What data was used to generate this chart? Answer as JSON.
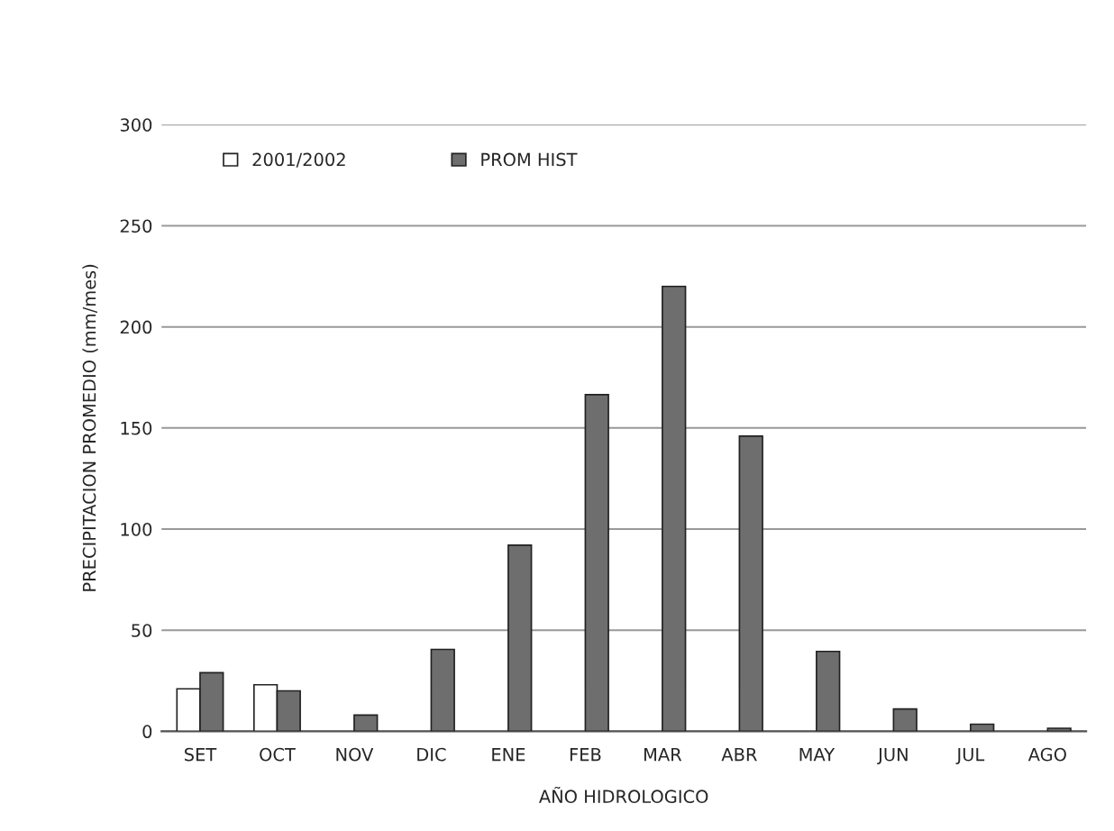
{
  "chart_data": {
    "type": "bar",
    "xlabel": "AÑO HIDROLOGICO",
    "ylabel": "PRECIPITACION PROMEDIO (mm/mes)",
    "categories": [
      "SET",
      "OCT",
      "NOV",
      "DIC",
      "ENE",
      "FEB",
      "MAR",
      "ABR",
      "MAY",
      "JUN",
      "JUL",
      "AGO"
    ],
    "series": [
      {
        "name": "2001/2002",
        "color": "#ffffff",
        "values": [
          21,
          23,
          null,
          null,
          null,
          null,
          null,
          null,
          null,
          null,
          null,
          null
        ]
      },
      {
        "name": "PROM HIST",
        "color": "#6e6e6e",
        "values": [
          29,
          20,
          8,
          40.5,
          92,
          166.5,
          220,
          146,
          39.5,
          11,
          3.5,
          1.5
        ]
      }
    ],
    "ylim": [
      0,
      300
    ],
    "yticks": [
      0,
      50,
      100,
      150,
      200,
      250,
      300
    ],
    "grid": "y",
    "legend": "top left"
  }
}
